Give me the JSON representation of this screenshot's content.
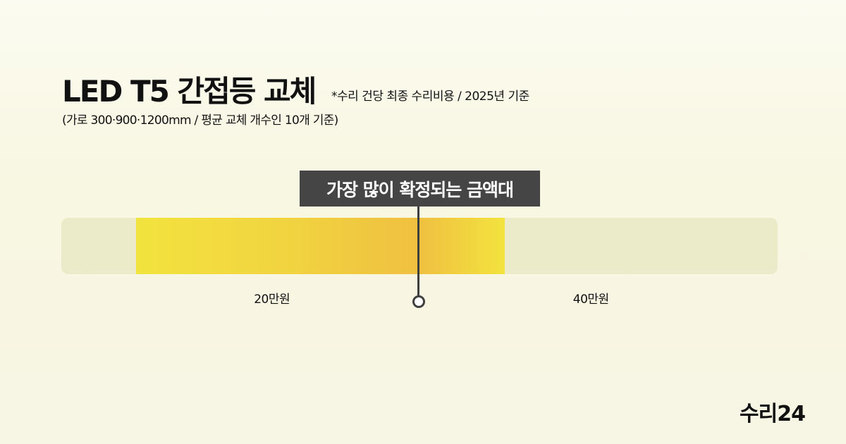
{
  "header": {
    "title": "LED T5 간접등 교체",
    "note": "*수리 건당 최종 수리비용 / 2025년 기준",
    "subtitle": "(가로 300·900·1200mm / 평균 교체 개수인 10개 기준)"
  },
  "chart_data": {
    "type": "range",
    "unit": "만원",
    "axis_min": 6.8,
    "axis_max": 51.7,
    "range": [
      11.5,
      34.6
    ],
    "peak": 29.2,
    "peak_label": "가장 많이 확정되는 금액대",
    "ticks": [
      {
        "value": 20,
        "label": "20만원"
      },
      {
        "value": 40,
        "label": "40만원"
      }
    ],
    "colors": {
      "track": "#ecebc9",
      "range_edge": "#f2e33e",
      "range_peak": "#f0c040",
      "callout": "#454545"
    }
  },
  "brand": {
    "logo": "수리24"
  }
}
